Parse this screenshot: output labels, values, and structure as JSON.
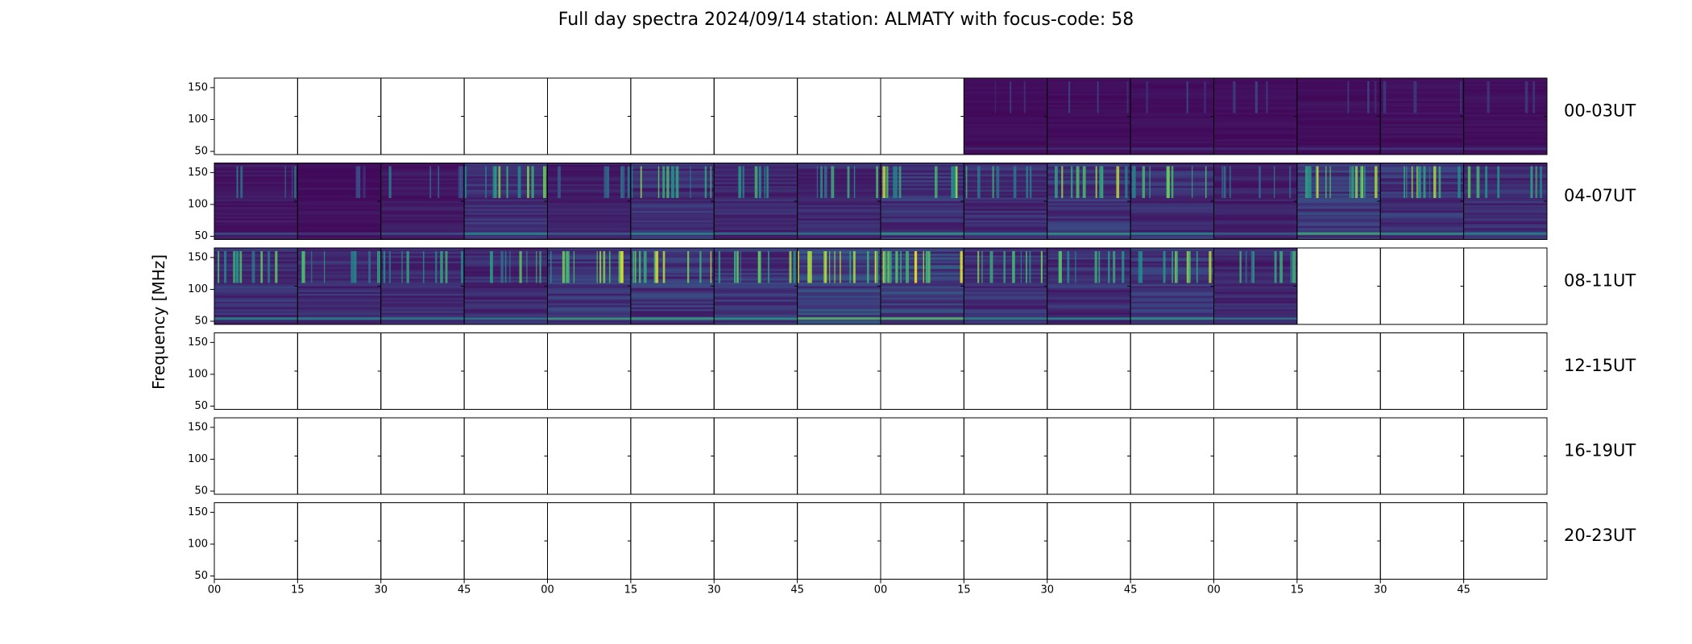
{
  "title": "Full day spectra 2024/09/14 station: ALMATY with focus-code: 58",
  "colors": {
    "background": "#ffffff",
    "frame": "#000000",
    "cmap_low": "#440154",
    "cmap_mid": "#21918c",
    "cmap_high": "#fde725"
  },
  "chart_data": {
    "type": "heatmap",
    "title": "Full day spectra 2024/09/14 station: ALMATY with focus-code: 58",
    "ylabel": "Frequency [MHz]",
    "xlabel": "",
    "ylim": [
      45,
      165
    ],
    "y_ticks": [
      50,
      100,
      150
    ],
    "x_tick_labels": [
      "00",
      "15",
      "30",
      "45",
      "00",
      "15",
      "30",
      "45",
      "00",
      "15",
      "30",
      "45",
      "00",
      "15",
      "30",
      "45"
    ],
    "colormap": "viridis",
    "panels_per_row": 16,
    "panel_minutes": 15,
    "rows": [
      {
        "label": "00-03UT",
        "has_data": [
          false,
          false,
          false,
          false,
          false,
          false,
          false,
          false,
          false,
          true,
          true,
          true,
          true,
          true,
          true,
          true
        ],
        "intensity": [
          0,
          0,
          0,
          0,
          0,
          0,
          0,
          0,
          0,
          0.15,
          0.15,
          0.18,
          0.16,
          0.18,
          0.2,
          0.18
        ]
      },
      {
        "label": "04-07UT",
        "has_data": [
          true,
          true,
          true,
          true,
          true,
          true,
          true,
          true,
          true,
          true,
          true,
          true,
          true,
          true,
          true,
          true
        ],
        "intensity": [
          0.3,
          0.2,
          0.3,
          0.55,
          0.35,
          0.55,
          0.45,
          0.45,
          0.6,
          0.5,
          0.6,
          0.55,
          0.35,
          0.7,
          0.6,
          0.5
        ]
      },
      {
        "label": "08-11UT",
        "has_data": [
          true,
          true,
          true,
          true,
          true,
          true,
          true,
          true,
          true,
          true,
          true,
          true,
          true,
          false,
          false,
          false
        ],
        "intensity": [
          0.55,
          0.5,
          0.5,
          0.5,
          0.65,
          0.65,
          0.6,
          0.8,
          0.8,
          0.55,
          0.55,
          0.6,
          0.45,
          0,
          0,
          0
        ]
      },
      {
        "label": "12-15UT",
        "has_data": [
          false,
          false,
          false,
          false,
          false,
          false,
          false,
          false,
          false,
          false,
          false,
          false,
          false,
          false,
          false,
          false
        ],
        "intensity": [
          0,
          0,
          0,
          0,
          0,
          0,
          0,
          0,
          0,
          0,
          0,
          0,
          0,
          0,
          0,
          0
        ]
      },
      {
        "label": "16-19UT",
        "has_data": [
          false,
          false,
          false,
          false,
          false,
          false,
          false,
          false,
          false,
          false,
          false,
          false,
          false,
          false,
          false,
          false
        ],
        "intensity": [
          0,
          0,
          0,
          0,
          0,
          0,
          0,
          0,
          0,
          0,
          0,
          0,
          0,
          0,
          0,
          0
        ]
      },
      {
        "label": "20-23UT",
        "has_data": [
          false,
          false,
          false,
          false,
          false,
          false,
          false,
          false,
          false,
          false,
          false,
          false,
          false,
          false,
          false,
          false
        ],
        "intensity": [
          0,
          0,
          0,
          0,
          0,
          0,
          0,
          0,
          0,
          0,
          0,
          0,
          0,
          0,
          0,
          0
        ]
      }
    ]
  }
}
